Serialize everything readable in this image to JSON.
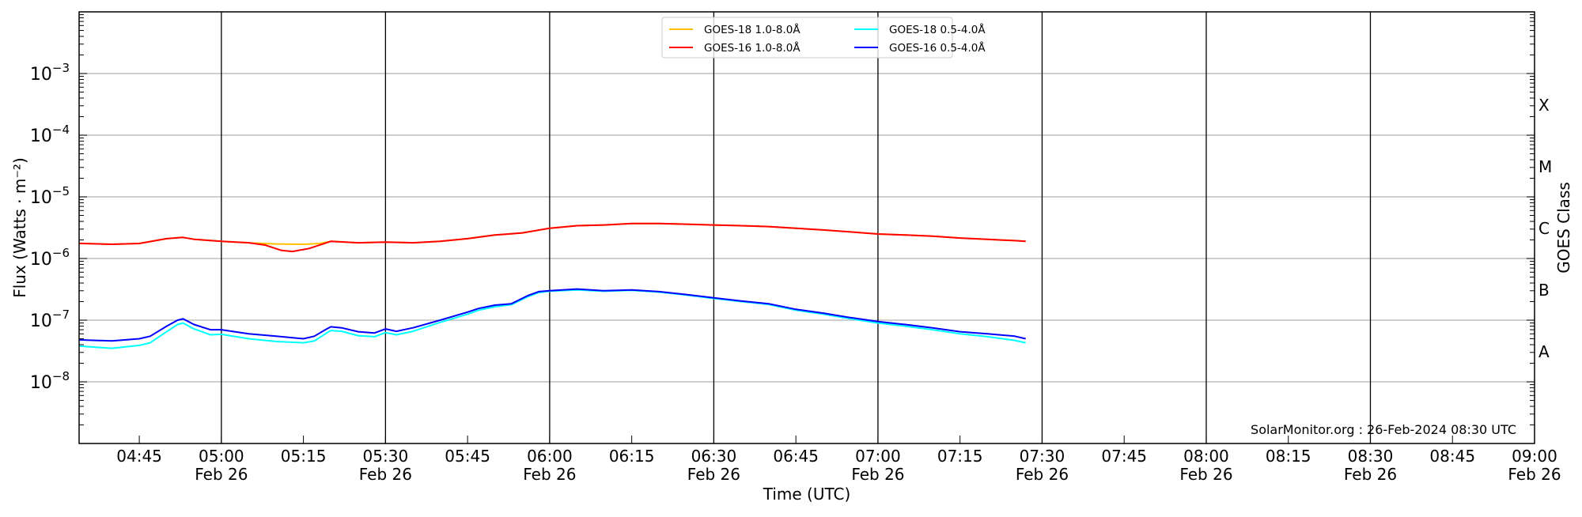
{
  "chart_data": {
    "type": "line",
    "title": "",
    "xlabel": "Time (UTC)",
    "ylabel": "Flux (Watts · m⁻²)",
    "ylabel_right": "GOES Class",
    "yscale": "log",
    "ylim": [
      1e-09,
      0.01
    ],
    "xlim": [
      "04:34",
      "09:00"
    ],
    "grid": true,
    "legend_position": "top-center",
    "watermark": "SolarMonitor.org : 26-Feb-2024 08:30 UTC",
    "y_ticks": [
      {
        "value": -3,
        "label": "10",
        "exp": "−3"
      },
      {
        "value": -4,
        "label": "10",
        "exp": "−4"
      },
      {
        "value": -5,
        "label": "10",
        "exp": "−5"
      },
      {
        "value": -6,
        "label": "10",
        "exp": "−6"
      },
      {
        "value": -7,
        "label": "10",
        "exp": "−7"
      },
      {
        "value": -8,
        "label": "10",
        "exp": "−8"
      }
    ],
    "goes_classes": [
      {
        "label": "X",
        "value": -3.5
      },
      {
        "label": "M",
        "value": -4.5
      },
      {
        "label": "C",
        "value": -5.5
      },
      {
        "label": "B",
        "value": -6.5
      },
      {
        "label": "A",
        "value": -7.5
      }
    ],
    "x_ticks": [
      {
        "time": "04:45",
        "date": ""
      },
      {
        "time": "05:00",
        "date": "Feb 26"
      },
      {
        "time": "05:15",
        "date": ""
      },
      {
        "time": "05:30",
        "date": "Feb 26"
      },
      {
        "time": "05:45",
        "date": ""
      },
      {
        "time": "06:00",
        "date": "Feb 26"
      },
      {
        "time": "06:15",
        "date": ""
      },
      {
        "time": "06:30",
        "date": "Feb 26"
      },
      {
        "time": "06:45",
        "date": ""
      },
      {
        "time": "07:00",
        "date": "Feb 26"
      },
      {
        "time": "07:15",
        "date": ""
      },
      {
        "time": "07:30",
        "date": "Feb 26"
      },
      {
        "time": "07:45",
        "date": ""
      },
      {
        "time": "08:00",
        "date": "Feb 26"
      },
      {
        "time": "08:15",
        "date": ""
      },
      {
        "time": "08:30",
        "date": "Feb 26"
      },
      {
        "time": "08:45",
        "date": ""
      },
      {
        "time": "09:00",
        "date": "Feb 26"
      }
    ],
    "series": [
      {
        "name": "GOES-18 1.0-8.0Å",
        "color": "#ffc000",
        "x": [
          "04:34",
          "04:40",
          "04:45",
          "04:50",
          "04:53",
          "04:55",
          "05:00",
          "05:05",
          "05:10",
          "05:15",
          "05:18",
          "05:20",
          "05:25",
          "05:30",
          "05:35",
          "05:40",
          "05:45",
          "05:50",
          "05:55",
          "06:00",
          "06:05",
          "06:10",
          "06:15",
          "06:20",
          "06:25",
          "06:30",
          "06:35",
          "06:40",
          "06:45",
          "06:50",
          "06:55",
          "07:00",
          "07:05",
          "07:10",
          "07:15",
          "07:20",
          "07:25",
          "07:27"
        ],
        "y": [
          1.76e-06,
          1.7e-06,
          1.75e-06,
          2.1e-06,
          2.2e-06,
          2.05e-06,
          1.9e-06,
          1.8e-06,
          1.72e-06,
          1.7e-06,
          1.75e-06,
          1.9e-06,
          1.8e-06,
          1.85e-06,
          1.8e-06,
          1.9e-06,
          2.1e-06,
          2.4e-06,
          2.6e-06,
          3.1e-06,
          3.4e-06,
          3.5e-06,
          3.7e-06,
          3.7e-06,
          3.6e-06,
          3.5e-06,
          3.4e-06,
          3.3e-06,
          3.1e-06,
          2.9e-06,
          2.7e-06,
          2.5e-06,
          2.4e-06,
          2.3e-06,
          2.15e-06,
          2.05e-06,
          1.95e-06,
          1.9e-06
        ]
      },
      {
        "name": "GOES-16 1.0-8.0Å",
        "color": "#ff0000",
        "x": [
          "04:34",
          "04:40",
          "04:45",
          "04:50",
          "04:53",
          "04:55",
          "05:00",
          "05:05",
          "05:08",
          "05:11",
          "05:13",
          "05:16",
          "05:20",
          "05:25",
          "05:30",
          "05:35",
          "05:40",
          "05:45",
          "05:50",
          "05:55",
          "06:00",
          "06:05",
          "06:10",
          "06:15",
          "06:20",
          "06:25",
          "06:30",
          "06:35",
          "06:40",
          "06:45",
          "06:50",
          "06:55",
          "07:00",
          "07:05",
          "07:10",
          "07:15",
          "07:20",
          "07:25",
          "07:27"
        ],
        "y": [
          1.76e-06,
          1.7e-06,
          1.75e-06,
          2.1e-06,
          2.2e-06,
          2.05e-06,
          1.9e-06,
          1.8e-06,
          1.65e-06,
          1.35e-06,
          1.3e-06,
          1.45e-06,
          1.9e-06,
          1.8e-06,
          1.85e-06,
          1.8e-06,
          1.9e-06,
          2.1e-06,
          2.4e-06,
          2.6e-06,
          3.1e-06,
          3.4e-06,
          3.5e-06,
          3.7e-06,
          3.7e-06,
          3.6e-06,
          3.5e-06,
          3.4e-06,
          3.3e-06,
          3.1e-06,
          2.9e-06,
          2.7e-06,
          2.5e-06,
          2.4e-06,
          2.3e-06,
          2.15e-06,
          2.05e-06,
          1.95e-06,
          1.9e-06
        ]
      },
      {
        "name": "GOES-18 0.5-4.0Å",
        "color": "#00ffff",
        "x": [
          "04:34",
          "04:40",
          "04:45",
          "04:47",
          "04:50",
          "04:52",
          "04:53",
          "04:55",
          "04:58",
          "05:00",
          "05:05",
          "05:10",
          "05:15",
          "05:17",
          "05:19",
          "05:20",
          "05:22",
          "05:25",
          "05:28",
          "05:30",
          "05:32",
          "05:35",
          "05:40",
          "05:45",
          "05:47",
          "05:50",
          "05:53",
          "05:56",
          "05:58",
          "06:00",
          "06:05",
          "06:10",
          "06:15",
          "06:20",
          "06:25",
          "06:30",
          "06:35",
          "06:40",
          "06:45",
          "06:50",
          "06:55",
          "07:00",
          "07:05",
          "07:10",
          "07:15",
          "07:20",
          "07:25",
          "07:27"
        ],
        "y": [
          3.8e-08,
          3.5e-08,
          3.9e-08,
          4.3e-08,
          6.5e-08,
          8.5e-08,
          9e-08,
          7.2e-08,
          5.8e-08,
          5.9e-08,
          5e-08,
          4.5e-08,
          4.3e-08,
          4.6e-08,
          6e-08,
          6.8e-08,
          6.6e-08,
          5.6e-08,
          5.4e-08,
          6.3e-08,
          5.8e-08,
          6.6e-08,
          9.2e-08,
          1.25e-07,
          1.45e-07,
          1.65e-07,
          1.78e-07,
          2.4e-07,
          2.8e-07,
          2.95e-07,
          3.1e-07,
          2.95e-07,
          3.05e-07,
          2.85e-07,
          2.55e-07,
          2.25e-07,
          2e-07,
          1.8e-07,
          1.45e-07,
          1.25e-07,
          1.05e-07,
          9e-08,
          8e-08,
          7e-08,
          6e-08,
          5.4e-08,
          4.7e-08,
          4.3e-08
        ]
      },
      {
        "name": "GOES-16 0.5-4.0Å",
        "color": "#0000ff",
        "x": [
          "04:34",
          "04:40",
          "04:45",
          "04:47",
          "04:50",
          "04:52",
          "04:53",
          "04:55",
          "04:58",
          "05:00",
          "05:05",
          "05:10",
          "05:15",
          "05:17",
          "05:19",
          "05:20",
          "05:22",
          "05:25",
          "05:28",
          "05:30",
          "05:32",
          "05:35",
          "05:40",
          "05:45",
          "05:47",
          "05:50",
          "05:53",
          "05:56",
          "05:58",
          "06:00",
          "06:05",
          "06:10",
          "06:15",
          "06:20",
          "06:25",
          "06:30",
          "06:35",
          "06:40",
          "06:45",
          "06:50",
          "06:55",
          "07:00",
          "07:05",
          "07:10",
          "07:15",
          "07:20",
          "07:25",
          "07:27"
        ],
        "y": [
          4.8e-08,
          4.6e-08,
          5e-08,
          5.5e-08,
          8e-08,
          1e-07,
          1.05e-07,
          8.5e-08,
          7e-08,
          7e-08,
          6e-08,
          5.5e-08,
          5e-08,
          5.5e-08,
          7e-08,
          7.8e-08,
          7.5e-08,
          6.5e-08,
          6.2e-08,
          7.2e-08,
          6.6e-08,
          7.5e-08,
          1e-07,
          1.35e-07,
          1.55e-07,
          1.75e-07,
          1.85e-07,
          2.5e-07,
          2.9e-07,
          3e-07,
          3.2e-07,
          3e-07,
          3.1e-07,
          2.9e-07,
          2.6e-07,
          2.3e-07,
          2.05e-07,
          1.85e-07,
          1.5e-07,
          1.3e-07,
          1.1e-07,
          9.5e-08,
          8.5e-08,
          7.5e-08,
          6.5e-08,
          6e-08,
          5.5e-08,
          5e-08
        ]
      }
    ]
  }
}
